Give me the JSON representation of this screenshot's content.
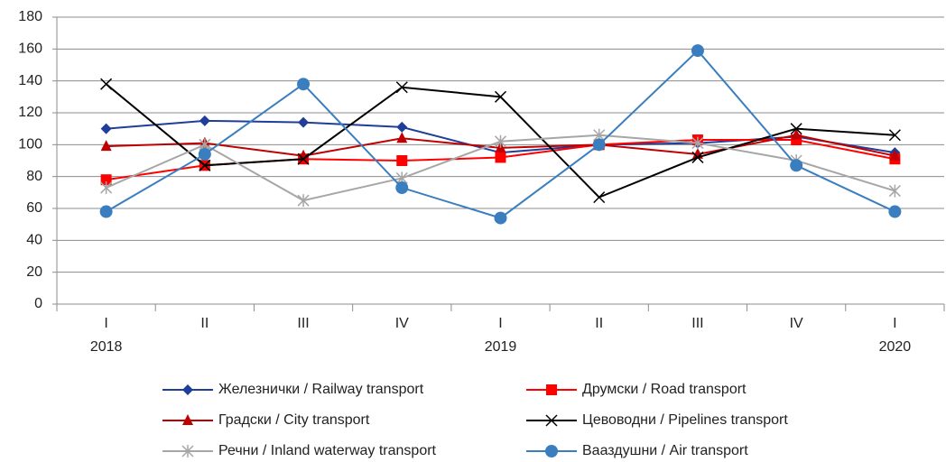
{
  "chart_data": {
    "type": "line",
    "categories": [
      "I",
      "II",
      "III",
      "IV",
      "I",
      "II",
      "III",
      "IV",
      "I"
    ],
    "years": [
      "2018",
      null,
      null,
      null,
      "2019",
      null,
      null,
      null,
      "2020"
    ],
    "ylim": [
      0,
      180
    ],
    "yticks": [
      0,
      20,
      40,
      60,
      80,
      100,
      120,
      140,
      160,
      180
    ],
    "grid": true,
    "legend": "bottom",
    "series": [
      {
        "name": "Железнички / Railway transport",
        "color": "#1f3d99",
        "marker": "diamond",
        "values": [
          110,
          115,
          114,
          111,
          95,
          100,
          101,
          105,
          95
        ]
      },
      {
        "name": "Друмски / Road transport",
        "color": "#ff0000",
        "marker": "square",
        "values": [
          78,
          87,
          91,
          90,
          92,
          100,
          103,
          103,
          91
        ]
      },
      {
        "name": "Градски / City transport",
        "color": "#c00000",
        "marker": "triangle",
        "values": [
          99,
          101,
          93,
          104,
          98,
          100,
          94,
          106,
          93
        ]
      },
      {
        "name": "Цевоводни / Pipelines transport",
        "color": "#000000",
        "marker": "x",
        "values": [
          138,
          87,
          91,
          136,
          130,
          67,
          92,
          110,
          106
        ]
      },
      {
        "name": "Речни / Inland waterway transport",
        "color": "#a6a6a6",
        "marker": "star",
        "values": [
          73,
          100,
          65,
          79,
          102,
          106,
          101,
          90,
          71
        ]
      },
      {
        "name": "Вааздушни / Air transport",
        "color": "#3a7ebf",
        "marker": "circle",
        "values": [
          58,
          94,
          138,
          73,
          54,
          100,
          159,
          87,
          58
        ]
      }
    ]
  }
}
